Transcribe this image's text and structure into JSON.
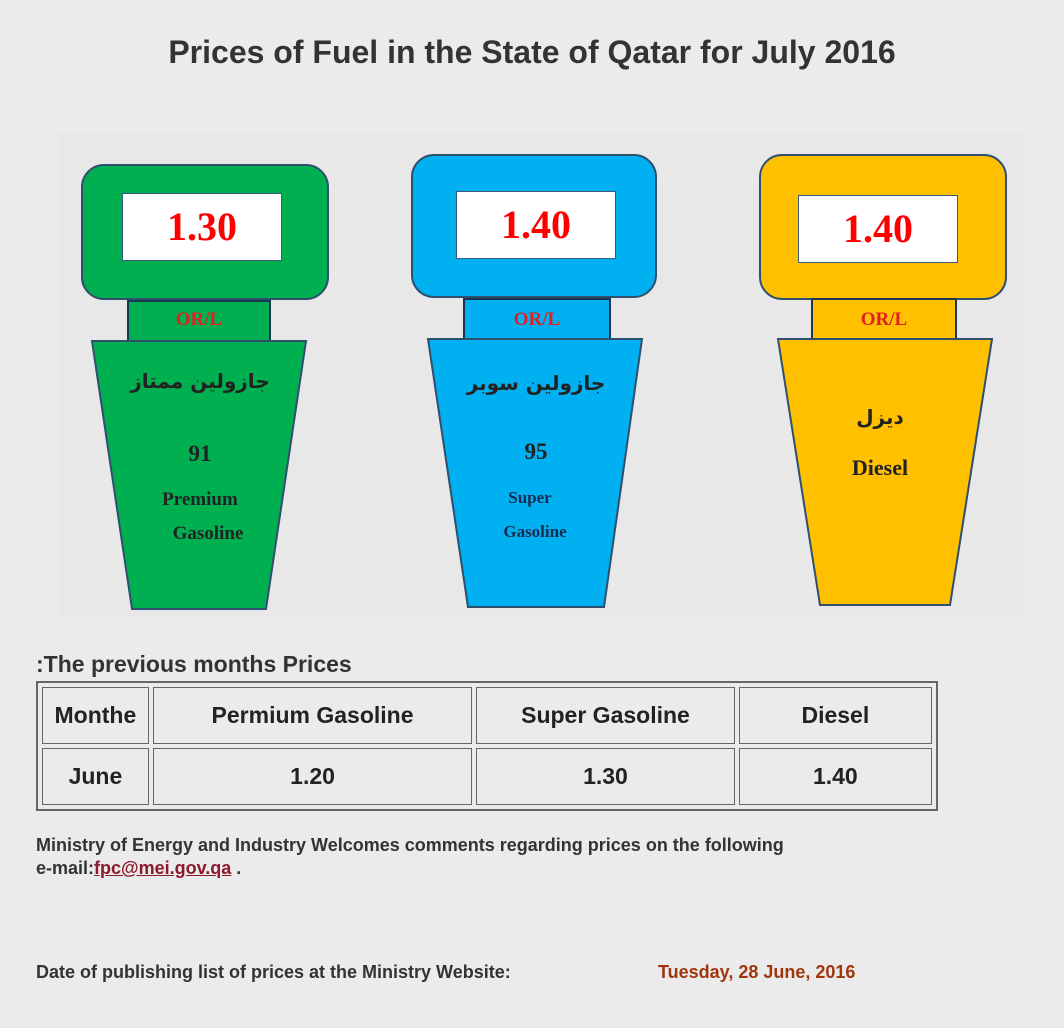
{
  "title": "Prices of Fuel in the State of Qatar for July 2016",
  "pumps": [
    {
      "price": "1.30",
      "unit": "OR/L",
      "arabic": "جازولين ممتاز",
      "octane": "91",
      "name_line1": "Premium",
      "name_line2": "Gasoline",
      "color": "#00b050"
    },
    {
      "price": "1.40",
      "unit": "OR/L",
      "arabic": "جازولين سوبر",
      "octane": "95",
      "name_line1": "Super",
      "name_line2": "Gasoline",
      "color": "#00b0f0"
    },
    {
      "price": "1.40",
      "unit": "OR/L",
      "arabic": "ديزل",
      "octane": "",
      "name_line1": "Diesel",
      "name_line2": "",
      "color": "#ffc000"
    }
  ],
  "previous": {
    "heading": ":The previous months  Prices",
    "headers": [
      "Monthe",
      "Permium Gasoline",
      "Super Gasoline",
      "Diesel"
    ],
    "rows": [
      [
        "June",
        "1.20",
        "1.30",
        "1.40"
      ]
    ]
  },
  "footer": {
    "text": "Ministry of Energy and Industry Welcomes comments regarding prices on the following",
    "email_prefix": "e-mail:",
    "email": "fpc@mei.gov.qa",
    "email_suffix": " .",
    "publish_label": "Date of publishing list of prices at the Ministry Website:",
    "publish_date": "Tuesday, 28 June, 2016"
  },
  "colors": {
    "outline": "#2f4f6f",
    "price_text": "#ff0000",
    "unit_text": "#e02020",
    "date_text": "#a0360e",
    "link_text": "#8b1a2e"
  }
}
